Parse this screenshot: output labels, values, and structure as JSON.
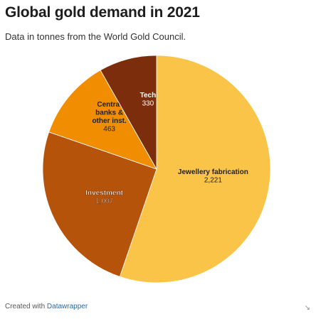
{
  "header": {
    "title": "Global gold demand in 2021",
    "subtitle": "Data in tonnes from the World Gold Council."
  },
  "footer": {
    "created_with": "Created with",
    "brand": "Datawrapper"
  },
  "chart_data": {
    "type": "pie",
    "title": "Global gold demand in 2021",
    "subtitle": "Data in tonnes from the World Gold Council.",
    "slices": [
      {
        "label_lines": [
          "Jewellery fabrication"
        ],
        "value": 2221,
        "value_text": "2,221",
        "color": "#f9c448",
        "text_color": "#222222",
        "outline": false
      },
      {
        "label_lines": [
          "Investment"
        ],
        "value": 1007,
        "value_text": "1,007",
        "color": "#b5530b",
        "text_color": "#ffffff",
        "outline": true
      },
      {
        "label_lines": [
          "Central",
          "banks &",
          "other inst."
        ],
        "value": 463,
        "value_text": "463",
        "color": "#f18d00",
        "text_color": "#222222",
        "outline": false
      },
      {
        "label_lines": [
          "Tech"
        ],
        "value": 330,
        "value_text": "330",
        "color": "#7c2d0c",
        "text_color": "#ffffff",
        "outline": false
      }
    ]
  }
}
